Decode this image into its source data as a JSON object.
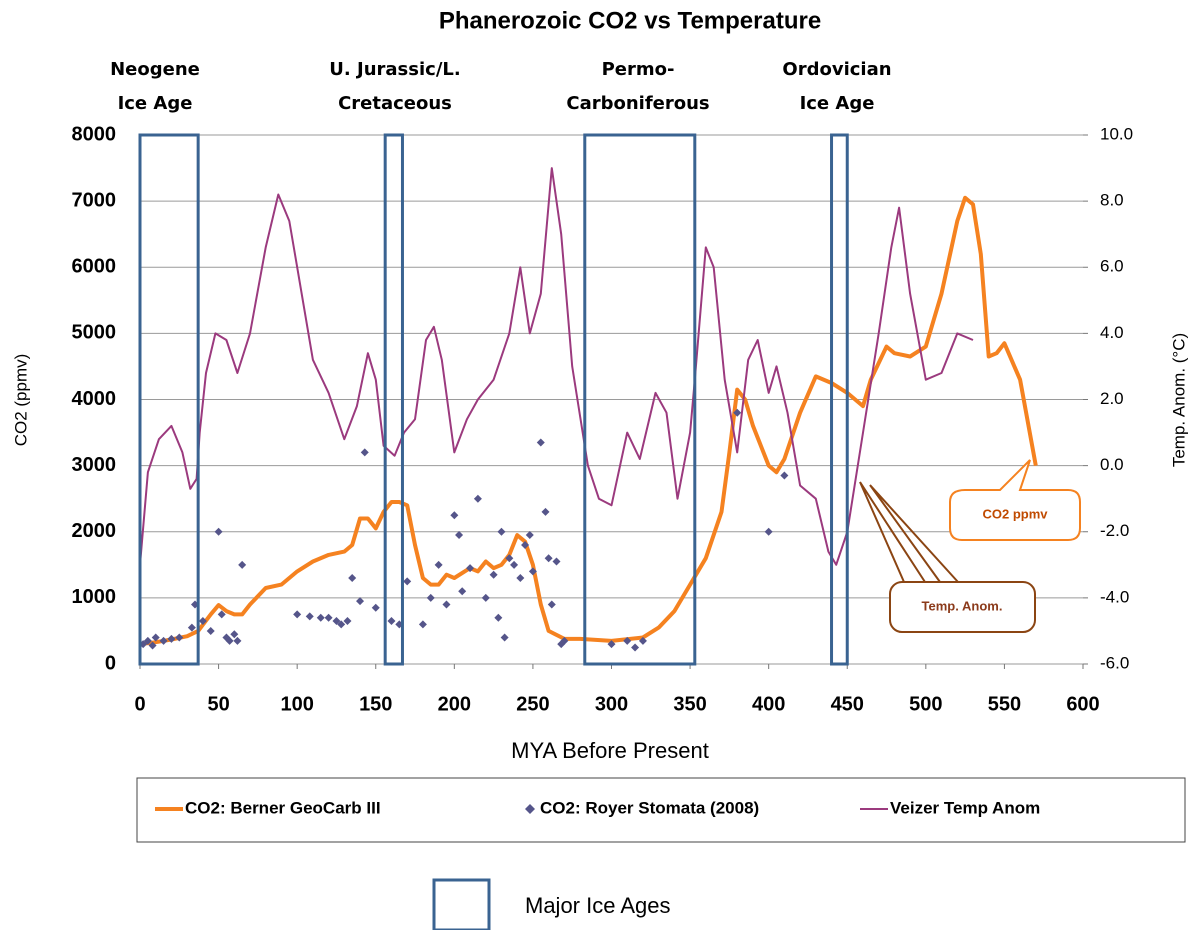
{
  "chart_data": {
    "type": "line",
    "title": "Phanerozoic CO2 vs Temperature",
    "x_label": "MYA Before Present",
    "y_label": "CO2 (ppmv)",
    "y2_label": "Temp. Anom. (°C)",
    "xlim": [
      0,
      600
    ],
    "xticks": [
      0,
      50,
      100,
      150,
      200,
      250,
      300,
      350,
      400,
      450,
      500,
      550,
      600
    ],
    "ylim": [
      0,
      8000
    ],
    "yticks": [
      0,
      1000,
      2000,
      3000,
      4000,
      5000,
      6000,
      7000,
      8000
    ],
    "y2lim": [
      -6,
      10
    ],
    "y2ticks": [
      {
        "value": -6,
        "label": "-6.0"
      },
      {
        "value": -4,
        "label": "-4.0"
      },
      {
        "value": -2,
        "label": "-2.0"
      },
      {
        "value": 0,
        "label": "0.0"
      },
      {
        "value": 2,
        "label": "2.0"
      },
      {
        "value": 4,
        "label": "4.0"
      },
      {
        "value": 6,
        "label": "6.0"
      },
      {
        "value": 8,
        "label": "8.0"
      },
      {
        "value": 10,
        "label": "10.0"
      }
    ],
    "grid": true,
    "series": [
      {
        "name": "CO2: Berner GeoCarb III",
        "type": "line",
        "color": "#f58220",
        "x": [
          0,
          10,
          20,
          30,
          37,
          45,
          50,
          55,
          60,
          65,
          70,
          80,
          90,
          100,
          110,
          120,
          130,
          135,
          140,
          145,
          150,
          155,
          160,
          165,
          170,
          175,
          180,
          185,
          190,
          195,
          200,
          210,
          215,
          220,
          225,
          230,
          235,
          240,
          245,
          250,
          255,
          260,
          270,
          280,
          300,
          320,
          330,
          340,
          350,
          360,
          370,
          375,
          380,
          385,
          390,
          400,
          405,
          410,
          420,
          430,
          440,
          450,
          460,
          465,
          475,
          480,
          490,
          500,
          510,
          520,
          525,
          530,
          535,
          540,
          545,
          550,
          560,
          570
        ],
        "values": [
          300,
          330,
          370,
          420,
          500,
          750,
          890,
          800,
          750,
          750,
          900,
          1150,
          1200,
          1400,
          1550,
          1650,
          1700,
          1800,
          2200,
          2200,
          2050,
          2300,
          2450,
          2450,
          2400,
          1800,
          1300,
          1200,
          1200,
          1350,
          1300,
          1450,
          1400,
          1550,
          1450,
          1500,
          1650,
          1950,
          1850,
          1500,
          900,
          500,
          380,
          380,
          350,
          400,
          550,
          800,
          1200,
          1600,
          2300,
          3200,
          4150,
          4000,
          3600,
          3000,
          2900,
          3100,
          3800,
          4350,
          4250,
          4100,
          3900,
          4300,
          4800,
          4700,
          4650,
          4800,
          5600,
          6700,
          7050,
          6950,
          6200,
          4650,
          4700,
          4850,
          4300,
          3000
        ]
      },
      {
        "name": "CO2: Royer Stomata (2008)",
        "type": "scatter",
        "color": "#55558a",
        "x": [
          2,
          5,
          8,
          10,
          15,
          20,
          25,
          33,
          35,
          40,
          45,
          50,
          52,
          55,
          57,
          60,
          62,
          65,
          100,
          108,
          115,
          120,
          125,
          128,
          132,
          135,
          140,
          143,
          150,
          160,
          165,
          170,
          180,
          185,
          190,
          195,
          200,
          203,
          205,
          210,
          215,
          220,
          225,
          228,
          230,
          232,
          235,
          238,
          242,
          245,
          248,
          250,
          255,
          258,
          260,
          262,
          265,
          268,
          270,
          300,
          310,
          315,
          320,
          380,
          400,
          410
        ],
        "values": [
          300,
          350,
          280,
          400,
          350,
          380,
          400,
          550,
          900,
          650,
          500,
          2000,
          750,
          400,
          350,
          450,
          350,
          1500,
          750,
          720,
          700,
          700,
          650,
          600,
          650,
          1300,
          950,
          3200,
          850,
          650,
          600,
          1250,
          600,
          1000,
          1500,
          900,
          2250,
          1950,
          1100,
          1450,
          2500,
          1000,
          1350,
          700,
          2000,
          400,
          1600,
          1500,
          1300,
          1800,
          1950,
          1400,
          3350,
          2300,
          1600,
          900,
          1550,
          300,
          350,
          300,
          350,
          250,
          350,
          3800,
          2000,
          2850
        ]
      },
      {
        "name": "Veizer Temp Anom",
        "type": "line",
        "axis": "y2",
        "color": "#9b3a7e",
        "x": [
          0,
          5,
          12,
          20,
          27,
          32,
          36,
          38,
          42,
          48,
          55,
          62,
          70,
          80,
          88,
          95,
          100,
          110,
          120,
          130,
          138,
          145,
          150,
          155,
          162,
          168,
          175,
          182,
          187,
          192,
          200,
          208,
          215,
          225,
          235,
          242,
          248,
          255,
          262,
          268,
          275,
          285,
          292,
          300,
          310,
          318,
          328,
          335,
          342,
          350,
          353,
          360,
          365,
          372,
          380,
          387,
          393,
          400,
          405,
          412,
          420,
          430,
          438,
          443,
          450,
          460,
          470,
          478,
          483,
          490,
          500,
          510,
          520,
          530
        ],
        "values": [
          -3.0,
          -0.2,
          0.8,
          1.2,
          0.4,
          -0.7,
          -0.4,
          1.0,
          2.8,
          4.0,
          3.8,
          2.8,
          4.0,
          6.6,
          8.2,
          7.4,
          6.0,
          3.2,
          2.2,
          0.8,
          1.8,
          3.4,
          2.6,
          0.6,
          0.3,
          1.0,
          1.4,
          3.8,
          4.2,
          3.2,
          0.4,
          1.4,
          2.0,
          2.6,
          4.0,
          6.0,
          4.0,
          5.2,
          9.0,
          7.0,
          3.0,
          0.0,
          -1.0,
          -1.2,
          1.0,
          0.2,
          2.2,
          1.6,
          -1.0,
          1.0,
          2.6,
          6.6,
          6.0,
          2.6,
          0.4,
          3.2,
          3.8,
          2.2,
          3.0,
          1.6,
          -0.6,
          -1.0,
          -2.6,
          -3.0,
          -2.0,
          1.0,
          4.0,
          6.6,
          7.8,
          5.2,
          2.6,
          2.8,
          4.0,
          3.8
        ]
      }
    ],
    "ice_ages": [
      {
        "label": [
          "Neogene",
          "Ice Age"
        ],
        "x": [
          0,
          37
        ]
      },
      {
        "label": [
          "U. Jurassic/L.",
          "Cretaceous"
        ],
        "x": [
          156,
          167
        ]
      },
      {
        "label": [
          "Permo-",
          "Carboniferous"
        ],
        "x": [
          283,
          353
        ]
      },
      {
        "label": [
          "Ordovician",
          "Ice Age"
        ],
        "x": [
          440,
          450
        ]
      }
    ],
    "ice_ages_legend": "Major Ice Ages",
    "annotations": [
      "CO2 ppmv",
      "Temp. Anom."
    ]
  }
}
